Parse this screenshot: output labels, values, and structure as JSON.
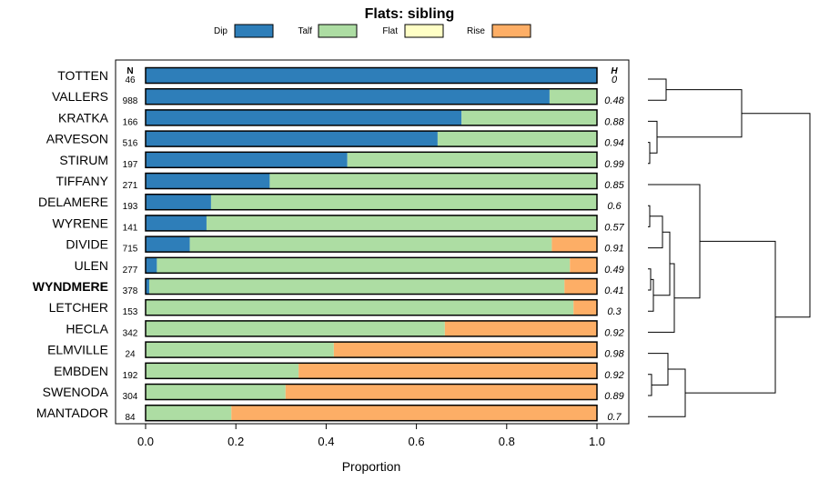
{
  "chart_data": {
    "type": "bar",
    "orientation": "horizontal",
    "stacked": true,
    "title": "Flats: sibling",
    "xlabel": "Proportion",
    "ylabel": "",
    "xlim": [
      0,
      1
    ],
    "x_ticks": [
      0.0,
      0.2,
      0.4,
      0.6,
      0.8,
      1.0
    ],
    "x_tick_labels": [
      "0.0",
      "0.2",
      "0.4",
      "0.6",
      "0.8",
      "1.0"
    ],
    "n_header": "N",
    "h_header": "H",
    "highlighted": "WYNDMERE",
    "legend": [
      {
        "name": "Dip",
        "color": "#2e7eb9"
      },
      {
        "name": "Talf",
        "color": "#addda3"
      },
      {
        "name": "Flat",
        "color": "#ffffc6"
      },
      {
        "name": "Rise",
        "color": "#fdae66"
      }
    ],
    "categories": [
      "TOTTEN",
      "VALLERS",
      "KRATKA",
      "ARVESON",
      "STIRUM",
      "TIFFANY",
      "DELAMERE",
      "WYRENE",
      "DIVIDE",
      "ULEN",
      "WYNDMERE",
      "LETCHER",
      "HECLA",
      "ELMVILLE",
      "EMBDEN",
      "SWENODA",
      "MANTADOR"
    ],
    "n_values": [
      46,
      988,
      166,
      516,
      197,
      271,
      193,
      141,
      715,
      277,
      378,
      153,
      342,
      24,
      192,
      304,
      84
    ],
    "h_values": [
      "0",
      "0.48",
      "0.88",
      "0.94",
      "0.99",
      "0.85",
      "0.6",
      "0.57",
      "0.91",
      "0.49",
      "0.41",
      "0.3",
      "0.92",
      "0.98",
      "0.92",
      "0.89",
      "0.7"
    ],
    "series": [
      {
        "name": "Dip",
        "values": [
          1.0,
          0.895,
          0.7,
          0.647,
          0.447,
          0.275,
          0.145,
          0.135,
          0.098,
          0.025,
          0.008,
          0.0,
          0.0,
          0.0,
          0.0,
          0.0,
          0.0
        ]
      },
      {
        "name": "Talf",
        "values": [
          0.0,
          0.105,
          0.3,
          0.353,
          0.553,
          0.725,
          0.855,
          0.865,
          0.802,
          0.915,
          0.92,
          0.948,
          0.663,
          0.417,
          0.339,
          0.31,
          0.19
        ]
      },
      {
        "name": "Flat",
        "values": [
          0,
          0,
          0,
          0,
          0,
          0,
          0,
          0,
          0,
          0,
          0,
          0,
          0,
          0,
          0,
          0,
          0
        ]
      },
      {
        "name": "Rise",
        "values": [
          0.0,
          0.0,
          0.0,
          0.0,
          0.0,
          0.0,
          0.0,
          0.0,
          0.1,
          0.06,
          0.072,
          0.052,
          0.337,
          0.583,
          0.661,
          0.69,
          0.81
        ]
      }
    ]
  }
}
